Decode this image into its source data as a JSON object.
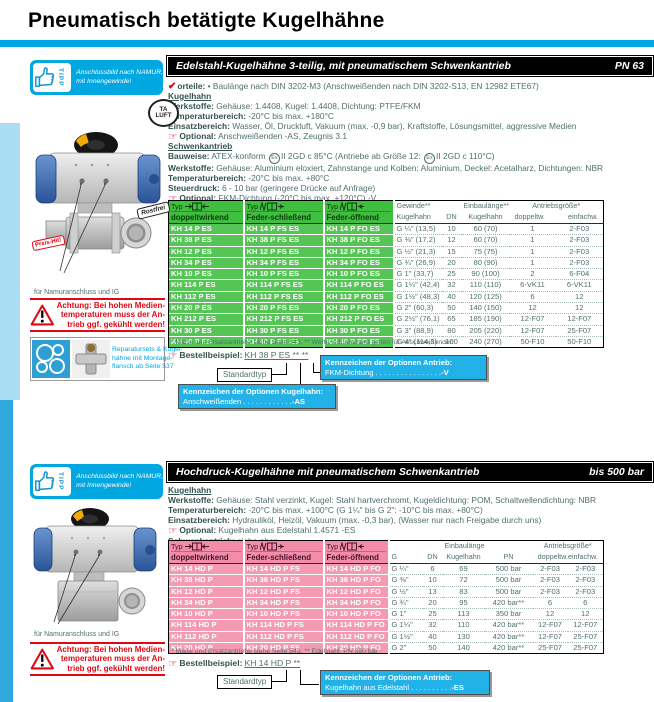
{
  "page": {
    "title": "Pneumatisch betätigte Kugelhähne"
  },
  "icons": {
    "check": "✔",
    "hand": "☞",
    "ex": "Ex",
    "tipp": "TIPP",
    "ta1": "TA",
    "ta2": "LUFT"
  },
  "tipp": {
    "l1": "Anschlussbild nach NAMUR,",
    "l2": "mit Innengewinde!"
  },
  "left": {
    "caption": "für Namuranschluss und IG",
    "rostfrei": "Rostfrei",
    "preis": "Preis-Hit!",
    "warn_l1": "Achtung: Bei hohen Medien-",
    "warn_l2": "temperaturen muss der An-",
    "warn_l3": "trieb ggf. gekühlt werden!",
    "repair_l1": "Reparatursets & Kugel-",
    "repair_l2": "hähne mit Montage-",
    "repair_l3": "flansch ab Seite 537"
  },
  "s1": {
    "bar": {
      "title": "Edelstahl-Kugelhähne 3-teilig, mit pneumatischem Schwenkantrieb",
      "badge": "PN 63"
    },
    "vorteile": {
      "label": "orteile:",
      "text": "• Baulänge nach DIN 3202-M3 (Anschweißenden nach DIN 3202-S13, EN 12982 ETE67)"
    },
    "h_kugelhahn": "Kugelhahn",
    "werkstoffe": {
      "label": "Werkstoffe:",
      "text": "Gehäuse: 1.4408, Kugel: 1.4408, Dichtung: PTFE/FKM"
    },
    "temp": {
      "label": "Temperaturbereich:",
      "text": "-20°C bis max. +180°C"
    },
    "einsatz": {
      "label": "Einsatzbereich:",
      "text": "Wasser, Öl, Druckluft, Vakuum (max. -0,9 bar), Kraftstoffe, Lösungsmittel, aggressive Medien"
    },
    "opt1": {
      "label": "Optional:",
      "text": "Anschweißenden -AS, Zeugnis 3.1"
    },
    "h_schwenk": "Schwenkantrieb",
    "bauweise": {
      "label": "Bauweise:",
      "p1": "ATEX-konform",
      "p2": "II 2GD c 85°C (Antriebe ab Größe 12:",
      "p3": "II 2GD c 110°C)"
    },
    "werkstoffe2": {
      "label": "Werkstoffe:",
      "text": "Gehäuse: Aluminium eloxiert, Zahnstange und Kolben: Aluminium, Deckel: Acetalharz, Dichtungen: NBR"
    },
    "temp2": {
      "label": "Temperaturbereich:",
      "text": "-20°C bis max. +80°C"
    },
    "steuer": {
      "label": "Steuerdruck:",
      "text": "6 - 10 bar (geringere Drücke auf Anfrage)"
    },
    "opt2": {
      "label": "Optional:",
      "text": "FKM-Dichtung (-20°C bis max. +120°C) -V"
    },
    "table": {
      "types": [
        {
          "typ": "Typ",
          "name": "doppeltwirkend"
        },
        {
          "typ": "Typ",
          "name": "Feder-schließend"
        },
        {
          "typ": "Typ",
          "name": "Feder-öffnend"
        }
      ],
      "h": {
        "gew1": "Gewinde**",
        "gew2": "Kugelhahn",
        "dn": "DN",
        "ein1": "Einbaulänge**",
        "ein2": "Kugelhahn",
        "ant": "Antriebsgröße*",
        "dopp": "doppeltw.",
        "einf": "einfachw."
      },
      "rows": [
        [
          "KH 14 P ES",
          "KH 14 P FS ES",
          "KH 14 P FO ES",
          "G ¼\" (13,5)",
          "10",
          "60 (70)",
          "1",
          "2-F03"
        ],
        [
          "KH 38 P ES",
          "KH 38 P FS ES",
          "KH 38 P FO ES",
          "G ⅜\" (17,2)",
          "12",
          "60 (70)",
          "1",
          "2-F03"
        ],
        [
          "KH 12 P ES",
          "KH 12 P FS ES",
          "KH 12 P FO ES",
          "G ½\" (21,3)",
          "15",
          "75 (75)",
          "1",
          "2-F03"
        ],
        [
          "KH 34 P ES",
          "KH 34 P FS ES",
          "KH 34 P FO ES",
          "G ¾\" (26,9)",
          "20",
          "80 (90)",
          "1",
          "2-F03"
        ],
        [
          "KH 10 P ES",
          "KH 10 P FS ES",
          "KH 10 P FO ES",
          "G 1\" (33,7)",
          "25",
          "90 (100)",
          "2",
          "6-F04"
        ],
        [
          "KH 114 P ES",
          "KH 114 P FS ES",
          "KH 114 P FO ES",
          "G 1¼\" (42,4)",
          "32",
          "110 (110)",
          "6-VK11",
          "6-VK11"
        ],
        [
          "KH 112 P ES",
          "KH 112 P FS ES",
          "KH 112 P FO ES",
          "G 1½\" (48,3)",
          "40",
          "120 (125)",
          "6",
          "12"
        ],
        [
          "KH 20 P ES",
          "KH 20 P FS ES",
          "KH 20 P FO ES",
          "G 2\" (60,3)",
          "50",
          "140 (150)",
          "12",
          "12"
        ],
        [
          "KH 212 P ES",
          "KH 212 P FS ES",
          "KH 212 P FO ES",
          "G 2½\" (76,1)",
          "65",
          "185 (190)",
          "12-F07",
          "12-F07"
        ],
        [
          "KH 30 P ES",
          "KH 30 P FS ES",
          "KH 30 P FO ES",
          "G 3\" (88,9)",
          "80",
          "205 (220)",
          "12-F07",
          "25-F07"
        ],
        [
          "KH 40 P ES",
          "KH 40 P FS ES",
          "KH 40 P FO ES",
          "G 4\" (114,3)",
          "100",
          "240 (270)",
          "50-F10",
          "50-F10"
        ]
      ],
      "footnote": "* Maße und Ersatzantriebe siehe Seite 543, ** Werte in Klammern gelten für Anschweißenden"
    },
    "bestell": {
      "label": "Bestellbeispiel:",
      "code": "KH 38 P ES ** **",
      "standard": "Standardtyp",
      "box_antrieb": {
        "t": "Kennzeichen der Optionen Antrieb:",
        "item": "FKM-Dichtung",
        "dots": ". . . . . . . . . . . . . . . .",
        "code": "-V"
      },
      "box_kugel": {
        "t": "Kennzeichen der Optionen Kugelhahn:",
        "item": "Anschweißenden",
        "dots": ". . . . . . . . . . . .",
        "code": "-AS"
      }
    }
  },
  "s2": {
    "bar": {
      "title": "Hochdruck-Kugelhähne mit pneumatischem Schwenkantrieb",
      "badge": "bis 500 bar"
    },
    "h_kugelhahn": "Kugelhahn",
    "werkstoffe": {
      "label": "Werkstoffe:",
      "text": "Gehäuse: Stahl verzinkt, Kugel: Stahl hartverchromt, Kugeldichtung: POM, Schaltwellendichtung: NBR"
    },
    "temp": {
      "label": "Temperaturbereich:",
      "text": "-20°C bis max. +100°C (G 1¼\" bis G 2\": -10°C bis max. +80°C)"
    },
    "einsatz": {
      "label": "Einsatzbereich:",
      "text": "Hydrauliköl, Heizöl, Vakuum (max. -0,3 bar), (Wasser nur nach Freigabe durch uns)"
    },
    "opt": {
      "label": "Optional:",
      "text": "Kugelhahn aus Edelstahl 1.4571 -ES"
    },
    "schwenk": {
      "label": "Schwenkantrieb:",
      "text": "siehe oben"
    },
    "table": {
      "types": [
        {
          "typ": "Typ",
          "name": "doppeltwirkend"
        },
        {
          "typ": "Typ",
          "name": "Feder-schließend"
        },
        {
          "typ": "Typ",
          "name": "Feder-öffnend"
        }
      ],
      "h": {
        "g": "G",
        "dn": "DN",
        "ein1": "Einbaulänge",
        "ein2": "Kugelhahn",
        "pn": "PN",
        "ant": "Antriebsgröße*",
        "de": "doppeltw.einfachw."
      },
      "rows": [
        [
          "KH 14 HD P",
          "KH 14 HD P FS",
          "KH 14 HD P FO",
          "G ¼\"",
          "6",
          "69",
          "500 bar",
          "2-F03",
          "2-F03"
        ],
        [
          "KH 38 HD P",
          "KH 38 HD P FS",
          "KH 38 HD P FO",
          "G ⅜\"",
          "10",
          "72",
          "500 bar",
          "2-F03",
          "2-F03"
        ],
        [
          "KH 12 HD P",
          "KH 12 HD P FS",
          "KH 12 HD P FO",
          "G ½\"",
          "13",
          "83",
          "500 bar",
          "2-F03",
          "2-F03"
        ],
        [
          "KH 34 HD P",
          "KH 34 HD P FS",
          "KH 34 HD P FO",
          "G ¾\"",
          "20",
          "95",
          "420 bar**",
          "6",
          "6"
        ],
        [
          "KH 10 HD P",
          "KH 10 HD P FS",
          "KH 10 HD P FO",
          "G 1\"",
          "25",
          "113",
          "350 bar",
          "12",
          "12"
        ],
        [
          "KH 114 HD P",
          "KH 114 HD P FS",
          "KH 114 HD P FO",
          "G 1¼\"",
          "32",
          "110",
          "420 bar**",
          "12-F07",
          "12-F07"
        ],
        [
          "KH 112 HD P",
          "KH 112 HD P FS",
          "KH 112 HD P FO",
          "G 1½\"",
          "40",
          "130",
          "420 bar**",
          "12-F07",
          "25-F07"
        ],
        [
          "KH 20 HD P",
          "KH 20 HD P FS",
          "KH 20 HD P FO",
          "G 2\"",
          "50",
          "140",
          "420 bar**",
          "25-F07",
          "25-F07"
        ]
      ],
      "footnote": "* Maße und Ersatzantriebe siehe Seite 543, ** Edelstahl: PN 350 bar"
    },
    "bestell": {
      "label": "Bestellbeispiel:",
      "code": "KH 14 HD P **",
      "standard": "Standardtyp",
      "box_antrieb": {
        "t": "Kennzeichen der Optionen Antrieb:",
        "item": "Kugelhahn aus Edelstahl",
        "dots": ". . . . . . . . . .",
        "code": "-ES"
      }
    }
  }
}
